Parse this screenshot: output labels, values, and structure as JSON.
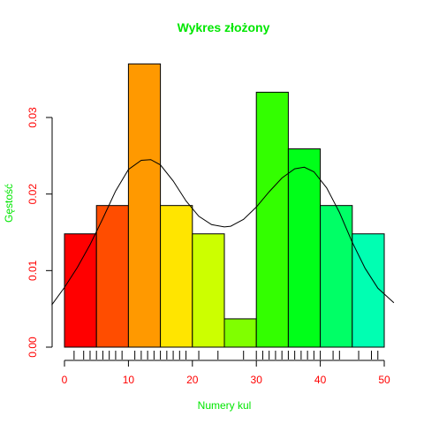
{
  "chart_data": {
    "type": "bar",
    "title": "Wykres złożony",
    "xlabel": "Numery kul",
    "ylabel": "Gęstość",
    "xlim": [
      0,
      50
    ],
    "ylim": [
      0,
      0.037
    ],
    "x_ticks": [
      "0",
      "10",
      "20",
      "30",
      "40",
      "50"
    ],
    "y_ticks": [
      "0.00",
      "0.01",
      "0.02",
      "0.03"
    ],
    "bins": [
      {
        "from": 0,
        "to": 5,
        "value": 0.0148
      },
      {
        "from": 5,
        "to": 10,
        "value": 0.0185
      },
      {
        "from": 10,
        "to": 15,
        "value": 0.037
      },
      {
        "from": 15,
        "to": 20,
        "value": 0.0185
      },
      {
        "from": 20,
        "to": 25,
        "value": 0.0148
      },
      {
        "from": 25,
        "to": 30,
        "value": 0.0037
      },
      {
        "from": 30,
        "to": 35,
        "value": 0.0333
      },
      {
        "from": 35,
        "to": 40,
        "value": 0.0259
      },
      {
        "from": 40,
        "to": 45,
        "value": 0.0185
      },
      {
        "from": 45,
        "to": 50,
        "value": 0.0148
      }
    ],
    "bar_colors": [
      "#FF0000",
      "#FF4D00",
      "#FF9900",
      "#FFE500",
      "#CCFF00",
      "#80FF00",
      "#33FF00",
      "#00FF19",
      "#00FF66",
      "#00FFB2"
    ],
    "density_curve": {
      "x": [
        -2,
        0,
        2,
        4,
        6,
        8,
        10,
        12,
        13.5,
        15,
        17,
        19,
        21,
        23,
        25,
        26,
        28,
        30,
        32,
        34,
        36,
        37.5,
        39,
        41,
        43,
        45,
        47,
        49,
        51.5
      ],
      "y": [
        0.0055,
        0.0078,
        0.0104,
        0.0134,
        0.0168,
        0.0204,
        0.0232,
        0.0244,
        0.0245,
        0.0238,
        0.0217,
        0.0191,
        0.0171,
        0.016,
        0.0157,
        0.0158,
        0.0167,
        0.0183,
        0.0203,
        0.0221,
        0.0233,
        0.0235,
        0.0229,
        0.0208,
        0.0176,
        0.0137,
        0.0103,
        0.0077,
        0.0058
      ]
    },
    "rug": [
      1.5,
      3,
      4,
      5,
      6,
      7,
      8,
      9,
      11,
      12,
      13,
      14,
      15,
      16,
      17,
      18,
      19,
      21,
      24,
      28,
      30,
      31,
      32,
      33,
      34,
      35,
      36,
      37,
      38,
      39,
      40,
      42,
      43,
      46,
      48,
      49
    ],
    "colors": {
      "title": "#00E600",
      "xlabel": "#00E600",
      "ylabel": "#00E600",
      "tick_labels": "#FF0000",
      "axis": "#000000",
      "curve": "#000000"
    }
  }
}
